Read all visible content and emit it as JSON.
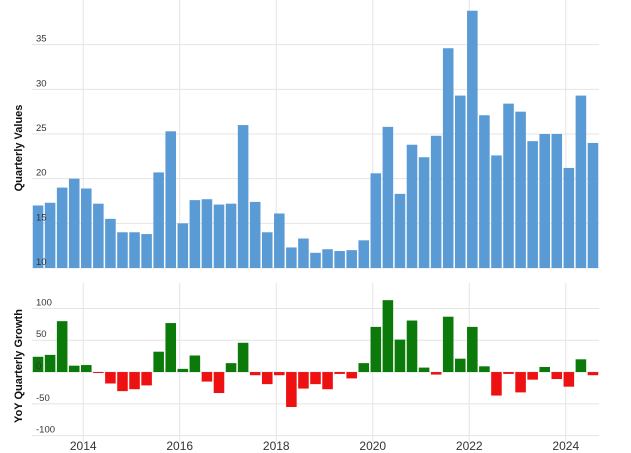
{
  "chart_data": [
    {
      "type": "bar",
      "ylabel": "Quarterly Values",
      "ylim": [
        10,
        40
      ],
      "yticks": [
        "10",
        "15",
        "20",
        "25",
        "30",
        "35"
      ],
      "grid": "horizontal and vertical",
      "color": "#5b9bd5",
      "xticks": [
        "2014",
        "2016",
        "2018",
        "2020",
        "2022",
        "2024"
      ],
      "values": [
        17.0,
        17.3,
        19.0,
        20.0,
        18.9,
        17.2,
        15.5,
        14.0,
        14.0,
        13.8,
        20.7,
        25.3,
        15.0,
        17.6,
        17.7,
        17.1,
        17.2,
        26.0,
        17.4,
        14.0,
        16.1,
        12.3,
        13.3,
        11.7,
        12.1,
        11.9,
        12.0,
        13.1,
        20.6,
        25.8,
        18.3,
        23.8,
        22.4,
        24.8,
        34.6,
        29.3,
        38.8,
        27.1,
        22.6,
        28.4,
        27.5,
        24.2,
        25.0,
        25.0,
        21.2,
        29.3,
        24.0
      ]
    },
    {
      "type": "bar",
      "ylabel": "YoY Quarterly Growth",
      "ylim": [
        -110,
        140
      ],
      "yticks": [
        "100",
        "50",
        "0",
        "-50",
        "-100"
      ],
      "grid": "horizontal and vertical",
      "positive_color": "#0b7a0b",
      "negative_color": "#ee1111",
      "xticks": [
        "2014",
        "2016",
        "2018",
        "2020",
        "2022",
        "2024"
      ],
      "values": [
        24,
        27,
        80,
        10,
        11,
        -1,
        -18,
        -30,
        -27,
        -21,
        32,
        77,
        5,
        26,
        -15,
        -33,
        14,
        46,
        -5,
        -19,
        -5,
        -55,
        -26,
        -19,
        -27,
        -3,
        -10,
        14,
        71,
        113,
        51,
        81,
        7,
        -4,
        87,
        21,
        71,
        9,
        -37,
        -3,
        -32,
        -12,
        8,
        -11,
        -23,
        20,
        -5
      ]
    }
  ]
}
